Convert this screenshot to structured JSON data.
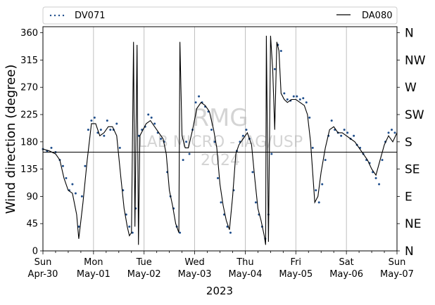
{
  "chart_data": {
    "type": "scatter",
    "xlabel": "2023",
    "ylabel": "Wind direction (degree)",
    "x_range": [
      "2023-04-30T00:00",
      "2023-05-07T00:00"
    ],
    "ylim": [
      0,
      370
    ],
    "yticks": [
      0,
      45,
      90,
      135,
      180,
      225,
      270,
      315,
      360
    ],
    "xticks": [
      {
        "date": "2023-04-30",
        "day": "Sun",
        "label": "Apr-30"
      },
      {
        "date": "2023-05-01",
        "day": "Mon",
        "label": "May-01"
      },
      {
        "date": "2023-05-02",
        "day": "Tue",
        "label": "May-02"
      },
      {
        "date": "2023-05-03",
        "day": "Wed",
        "label": "May-03"
      },
      {
        "date": "2023-05-04",
        "day": "Thu",
        "label": "May-04"
      },
      {
        "date": "2023-05-05",
        "day": "Fri",
        "label": "May-05"
      },
      {
        "date": "2023-05-06",
        "day": "Sat",
        "label": "May-06"
      },
      {
        "date": "2023-05-07",
        "day": "Sun",
        "label": "May-07"
      }
    ],
    "compass": [
      {
        "label": "N",
        "deg": 0
      },
      {
        "label": "NE",
        "deg": 45
      },
      {
        "label": "E",
        "deg": 90
      },
      {
        "label": "SE",
        "deg": 135
      },
      {
        "label": "S",
        "deg": 180
      },
      {
        "label": "SW",
        "deg": 225
      },
      {
        "label": "W",
        "deg": 270
      },
      {
        "label": "NW",
        "deg": 315
      },
      {
        "label": "N",
        "deg": 360
      }
    ],
    "reference_line": 163,
    "grid": "vertical",
    "legend_placement": "top, above plot",
    "watermark": [
      "RMG",
      "LAB MICRO - IAG/USP",
      "2024"
    ],
    "series": [
      {
        "name": "DV071",
        "style": "dots",
        "color": "#1f4e8c",
        "points": [
          [
            "2023-04-30T00:00",
            168
          ],
          [
            "2023-04-30T02:00",
            165
          ],
          [
            "2023-04-30T04:00",
            170
          ],
          [
            "2023-04-30T06:00",
            163
          ],
          [
            "2023-04-30T08:00",
            150
          ],
          [
            "2023-04-30T09:30",
            140
          ],
          [
            "2023-04-30T11:00",
            120
          ],
          [
            "2023-04-30T12:30",
            100
          ],
          [
            "2023-04-30T14:00",
            110
          ],
          [
            "2023-04-30T15:30",
            95
          ],
          [
            "2023-04-30T17:00",
            40
          ],
          [
            "2023-04-30T18:30",
            90
          ],
          [
            "2023-04-30T20:00",
            140
          ],
          [
            "2023-04-30T21:30",
            200
          ],
          [
            "2023-04-30T23:00",
            215
          ],
          [
            "2023-05-01T00:30",
            220
          ],
          [
            "2023-05-01T02:00",
            195
          ],
          [
            "2023-05-01T03:30",
            200
          ],
          [
            "2023-05-01T05:00",
            190
          ],
          [
            "2023-05-01T06:30",
            215
          ],
          [
            "2023-05-01T08:00",
            200
          ],
          [
            "2023-05-01T09:30",
            200
          ],
          [
            "2023-05-01T11:00",
            210
          ],
          [
            "2023-05-01T12:30",
            170
          ],
          [
            "2023-05-01T14:00",
            100
          ],
          [
            "2023-05-01T15:30",
            60
          ],
          [
            "2023-05-01T17:00",
            40
          ],
          [
            "2023-05-01T18:30",
            30
          ],
          [
            "2023-05-01T20:00",
            70
          ],
          [
            "2023-05-01T21:30",
            190
          ],
          [
            "2023-05-01T23:00",
            200
          ],
          [
            "2023-05-02T00:30",
            205
          ],
          [
            "2023-05-02T02:00",
            225
          ],
          [
            "2023-05-02T03:30",
            220
          ],
          [
            "2023-05-02T05:00",
            210
          ],
          [
            "2023-05-02T06:30",
            195
          ],
          [
            "2023-05-02T08:00",
            185
          ],
          [
            "2023-05-02T09:30",
            180
          ],
          [
            "2023-05-02T11:00",
            130
          ],
          [
            "2023-05-02T12:30",
            90
          ],
          [
            "2023-05-02T14:00",
            70
          ],
          [
            "2023-05-02T15:30",
            40
          ],
          [
            "2023-05-02T17:00",
            30
          ],
          [
            "2023-05-02T18:30",
            150
          ],
          [
            "2023-05-02T20:00",
            180
          ],
          [
            "2023-05-02T21:30",
            160
          ],
          [
            "2023-05-02T23:00",
            200
          ],
          [
            "2023-05-03T00:30",
            245
          ],
          [
            "2023-05-03T02:00",
            255
          ],
          [
            "2023-05-03T03:30",
            245
          ],
          [
            "2023-05-03T05:00",
            238
          ],
          [
            "2023-05-03T06:30",
            230
          ],
          [
            "2023-05-03T08:00",
            200
          ],
          [
            "2023-05-03T09:30",
            180
          ],
          [
            "2023-05-03T11:00",
            120
          ],
          [
            "2023-05-03T12:30",
            80
          ],
          [
            "2023-05-03T14:00",
            60
          ],
          [
            "2023-05-03T15:30",
            40
          ],
          [
            "2023-05-03T17:00",
            30
          ],
          [
            "2023-05-03T18:30",
            100
          ],
          [
            "2023-05-03T20:00",
            165
          ],
          [
            "2023-05-03T21:30",
            180
          ],
          [
            "2023-05-03T23:00",
            190
          ],
          [
            "2023-05-04T00:30",
            200
          ],
          [
            "2023-05-04T02:00",
            185
          ],
          [
            "2023-05-04T03:30",
            130
          ],
          [
            "2023-05-04T05:00",
            80
          ],
          [
            "2023-05-04T06:30",
            60
          ],
          [
            "2023-05-04T08:00",
            40
          ],
          [
            "2023-05-04T09:30",
            20
          ],
          [
            "2023-05-04T11:00",
            60
          ],
          [
            "2023-05-04T12:30",
            160
          ],
          [
            "2023-05-04T14:00",
            300
          ],
          [
            "2023-05-04T15:30",
            340
          ],
          [
            "2023-05-04T17:00",
            330
          ],
          [
            "2023-05-04T18:30",
            260
          ],
          [
            "2023-05-04T20:00",
            250
          ],
          [
            "2023-05-04T21:30",
            248
          ],
          [
            "2023-05-04T23:00",
            255
          ],
          [
            "2023-05-05T00:30",
            255
          ],
          [
            "2023-05-05T02:00",
            250
          ],
          [
            "2023-05-05T03:30",
            252
          ],
          [
            "2023-05-05T05:00",
            245
          ],
          [
            "2023-05-05T06:30",
            220
          ],
          [
            "2023-05-05T08:00",
            170
          ],
          [
            "2023-05-05T09:30",
            100
          ],
          [
            "2023-05-05T11:00",
            80
          ],
          [
            "2023-05-05T12:30",
            110
          ],
          [
            "2023-05-05T14:00",
            150
          ],
          [
            "2023-05-05T15:30",
            190
          ],
          [
            "2023-05-05T17:00",
            215
          ],
          [
            "2023-05-05T18:30",
            200
          ],
          [
            "2023-05-05T20:00",
            195
          ],
          [
            "2023-05-05T21:30",
            190
          ],
          [
            "2023-05-05T23:00",
            200
          ],
          [
            "2023-05-06T00:30",
            195
          ],
          [
            "2023-05-06T02:00",
            185
          ],
          [
            "2023-05-06T03:30",
            190
          ],
          [
            "2023-05-06T05:00",
            175
          ],
          [
            "2023-05-06T06:30",
            170
          ],
          [
            "2023-05-06T08:00",
            160
          ],
          [
            "2023-05-06T09:30",
            150
          ],
          [
            "2023-05-06T11:00",
            145
          ],
          [
            "2023-05-06T12:30",
            130
          ],
          [
            "2023-05-06T14:00",
            120
          ],
          [
            "2023-05-06T15:30",
            110
          ],
          [
            "2023-05-06T17:00",
            150
          ],
          [
            "2023-05-06T18:30",
            180
          ],
          [
            "2023-05-06T20:00",
            195
          ],
          [
            "2023-05-06T21:30",
            200
          ],
          [
            "2023-05-06T23:00",
            195
          ]
        ]
      },
      {
        "name": "DA080",
        "style": "line",
        "color": "#000000",
        "points": [
          [
            "2023-04-30T00:00",
            168
          ],
          [
            "2023-04-30T03:00",
            165
          ],
          [
            "2023-04-30T06:00",
            160
          ],
          [
            "2023-04-30T08:00",
            150
          ],
          [
            "2023-04-30T10:00",
            120
          ],
          [
            "2023-04-30T12:00",
            100
          ],
          [
            "2023-04-30T14:00",
            95
          ],
          [
            "2023-04-30T16:00",
            60
          ],
          [
            "2023-04-30T17:00",
            20
          ],
          [
            "2023-04-30T19:00",
            80
          ],
          [
            "2023-04-30T21:00",
            150
          ],
          [
            "2023-04-30T23:00",
            210
          ],
          [
            "2023-05-01T01:00",
            210
          ],
          [
            "2023-05-01T03:00",
            190
          ],
          [
            "2023-05-01T05:00",
            195
          ],
          [
            "2023-05-01T07:00",
            205
          ],
          [
            "2023-05-01T09:00",
            205
          ],
          [
            "2023-05-01T11:00",
            190
          ],
          [
            "2023-05-01T13:00",
            120
          ],
          [
            "2023-05-01T14:30",
            70
          ],
          [
            "2023-05-01T16:00",
            40
          ],
          [
            "2023-05-01T17:00",
            25
          ],
          [
            "2023-05-01T18:00",
            30
          ],
          [
            "2023-05-01T19:00",
            345
          ],
          [
            "2023-05-01T19:40",
            40
          ],
          [
            "2023-05-01T20:40",
            340
          ],
          [
            "2023-05-01T21:20",
            10
          ],
          [
            "2023-05-01T22:00",
            190
          ],
          [
            "2023-05-01T23:30",
            200
          ],
          [
            "2023-05-02T01:00",
            210
          ],
          [
            "2023-05-02T03:00",
            215
          ],
          [
            "2023-05-02T05:00",
            205
          ],
          [
            "2023-05-02T07:00",
            195
          ],
          [
            "2023-05-02T09:00",
            185
          ],
          [
            "2023-05-02T10:30",
            160
          ],
          [
            "2023-05-02T12:00",
            100
          ],
          [
            "2023-05-02T13:30",
            75
          ],
          [
            "2023-05-02T15:00",
            45
          ],
          [
            "2023-05-02T16:30",
            30
          ],
          [
            "2023-05-02T17:00",
            345
          ],
          [
            "2023-05-02T18:00",
            190
          ],
          [
            "2023-05-02T19:30",
            170
          ],
          [
            "2023-05-02T21:00",
            170
          ],
          [
            "2023-05-02T23:00",
            200
          ],
          [
            "2023-05-03T01:00",
            235
          ],
          [
            "2023-05-03T03:00",
            245
          ],
          [
            "2023-05-03T05:00",
            240
          ],
          [
            "2023-05-03T07:00",
            230
          ],
          [
            "2023-05-03T09:00",
            200
          ],
          [
            "2023-05-03T10:30",
            170
          ],
          [
            "2023-05-03T12:00",
            110
          ],
          [
            "2023-05-03T13:30",
            75
          ],
          [
            "2023-05-03T15:00",
            50
          ],
          [
            "2023-05-03T16:30",
            35
          ],
          [
            "2023-05-03T18:00",
            90
          ],
          [
            "2023-05-03T19:30",
            160
          ],
          [
            "2023-05-03T21:00",
            175
          ],
          [
            "2023-05-03T23:00",
            185
          ],
          [
            "2023-05-04T01:00",
            195
          ],
          [
            "2023-05-04T03:00",
            175
          ],
          [
            "2023-05-04T04:30",
            120
          ],
          [
            "2023-05-04T06:00",
            70
          ],
          [
            "2023-05-04T07:30",
            50
          ],
          [
            "2023-05-04T09:00",
            25
          ],
          [
            "2023-05-04T09:40",
            10
          ],
          [
            "2023-05-04T10:00",
            355
          ],
          [
            "2023-05-04T11:00",
            15
          ],
          [
            "2023-05-04T12:00",
            355
          ],
          [
            "2023-05-04T13:00",
            300
          ],
          [
            "2023-05-04T14:00",
            200
          ],
          [
            "2023-05-04T15:00",
            345
          ],
          [
            "2023-05-04T16:00",
            330
          ],
          [
            "2023-05-04T17:00",
            260
          ],
          [
            "2023-05-04T18:30",
            250
          ],
          [
            "2023-05-04T20:00",
            245
          ],
          [
            "2023-05-04T22:00",
            250
          ],
          [
            "2023-05-05T00:00",
            250
          ],
          [
            "2023-05-05T02:00",
            245
          ],
          [
            "2023-05-05T04:00",
            240
          ],
          [
            "2023-05-05T05:30",
            225
          ],
          [
            "2023-05-05T07:00",
            180
          ],
          [
            "2023-05-05T08:00",
            130
          ],
          [
            "2023-05-05T09:00",
            80
          ],
          [
            "2023-05-05T10:30",
            90
          ],
          [
            "2023-05-05T12:00",
            130
          ],
          [
            "2023-05-05T14:00",
            170
          ],
          [
            "2023-05-05T16:00",
            200
          ],
          [
            "2023-05-05T18:00",
            205
          ],
          [
            "2023-05-05T20:00",
            195
          ],
          [
            "2023-05-05T22:00",
            195
          ],
          [
            "2023-05-06T00:00",
            190
          ],
          [
            "2023-05-06T02:00",
            185
          ],
          [
            "2023-05-06T04:00",
            180
          ],
          [
            "2023-05-06T06:00",
            170
          ],
          [
            "2023-05-06T08:00",
            160
          ],
          [
            "2023-05-06T10:00",
            150
          ],
          [
            "2023-05-06T12:00",
            135
          ],
          [
            "2023-05-06T14:00",
            125
          ],
          [
            "2023-05-06T16:00",
            150
          ],
          [
            "2023-05-06T18:00",
            175
          ],
          [
            "2023-05-06T20:00",
            190
          ],
          [
            "2023-05-06T22:00",
            180
          ],
          [
            "2023-05-07T00:00",
            195
          ]
        ]
      }
    ]
  }
}
